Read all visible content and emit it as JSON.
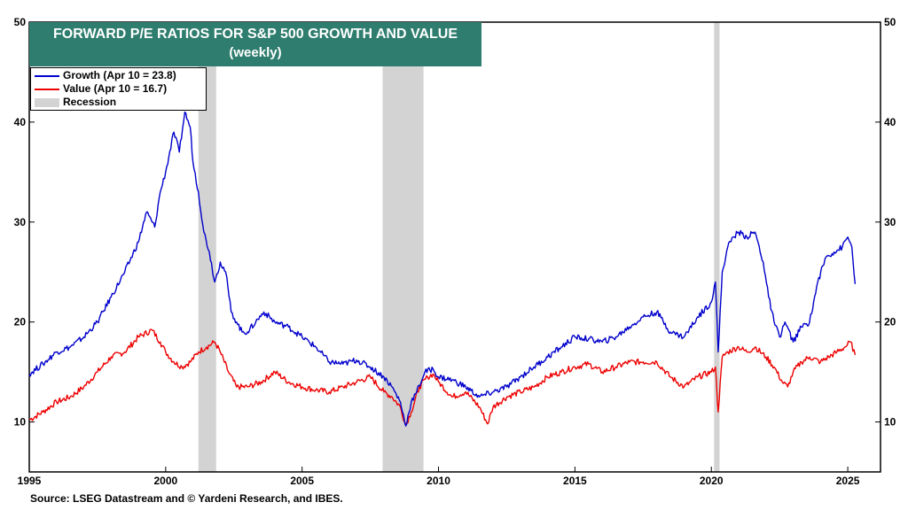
{
  "chart_data": {
    "type": "line",
    "title": "FORWARD P/E RATIOS FOR S&P 500 GROWTH AND VALUE",
    "subtitle": "(weekly)",
    "xlim": [
      1995,
      2026.2
    ],
    "ylim": [
      5,
      50
    ],
    "x_ticks": [
      "1995",
      "2000",
      "2005",
      "2010",
      "2015",
      "2020",
      "2025"
    ],
    "y_ticks": [
      "10",
      "20",
      "30",
      "40",
      "50"
    ],
    "legend_position": "top-left",
    "series": [
      {
        "name": "Growth (Apr 10 = 23.8)",
        "color": "#0000cc",
        "x": [
          1995.0,
          1995.5,
          1996.0,
          1996.5,
          1997.0,
          1997.5,
          1998.0,
          1998.5,
          1999.0,
          1999.3,
          1999.6,
          1999.8,
          2000.0,
          2000.3,
          2000.5,
          2000.7,
          2000.9,
          2001.0,
          2001.2,
          2001.4,
          2001.6,
          2001.8,
          2002.0,
          2002.2,
          2002.4,
          2002.6,
          2002.8,
          2003.0,
          2003.3,
          2003.6,
          2004.0,
          2004.5,
          2005.0,
          2005.5,
          2006.0,
          2006.5,
          2007.0,
          2007.5,
          2008.0,
          2008.3,
          2008.6,
          2008.8,
          2009.0,
          2009.2,
          2009.5,
          2009.8,
          2010.0,
          2010.5,
          2011.0,
          2011.5,
          2012.0,
          2012.5,
          2013.0,
          2013.5,
          2014.0,
          2014.5,
          2015.0,
          2015.5,
          2016.0,
          2016.5,
          2017.0,
          2017.5,
          2018.0,
          2018.5,
          2019.0,
          2019.5,
          2020.0,
          2020.15,
          2020.25,
          2020.4,
          2020.6,
          2020.8,
          2021.0,
          2021.3,
          2021.6,
          2021.9,
          2022.1,
          2022.3,
          2022.5,
          2022.7,
          2023.0,
          2023.3,
          2023.6,
          2023.9,
          2024.2,
          2024.5,
          2024.8,
          2025.0,
          2025.15,
          2025.27
        ],
        "values": [
          14.8,
          15.8,
          17.0,
          17.5,
          18.5,
          20.0,
          22.5,
          25.0,
          28.0,
          31.0,
          29.5,
          33.0,
          35.0,
          39.0,
          37.0,
          41.0,
          39.5,
          36.0,
          33.0,
          29.0,
          27.0,
          24.0,
          26.0,
          25.0,
          21.0,
          20.0,
          19.0,
          19.0,
          20.0,
          21.0,
          20.0,
          19.5,
          18.5,
          17.5,
          16.0,
          15.8,
          16.2,
          15.5,
          14.5,
          13.5,
          12.0,
          9.6,
          12.0,
          13.0,
          15.0,
          15.3,
          14.5,
          14.2,
          13.5,
          12.5,
          13.0,
          13.5,
          14.5,
          15.5,
          16.5,
          17.5,
          18.5,
          18.3,
          18.0,
          18.5,
          19.5,
          20.5,
          21.0,
          19.0,
          18.5,
          20.5,
          22.0,
          24.0,
          17.0,
          25.0,
          27.5,
          28.5,
          29.0,
          28.5,
          29.0,
          26.0,
          22.5,
          20.0,
          18.5,
          20.0,
          18.0,
          19.5,
          20.0,
          24.0,
          26.5,
          27.0,
          27.5,
          28.5,
          27.5,
          23.8
        ]
      },
      {
        "name": "Value (Apr 10 = 16.7)",
        "color": "#ee0000",
        "x": [
          1995.0,
          1995.5,
          1996.0,
          1996.5,
          1997.0,
          1997.5,
          1998.0,
          1998.5,
          1999.0,
          1999.5,
          1999.8,
          2000.0,
          2000.3,
          2000.6,
          2000.9,
          2001.2,
          2001.5,
          2001.8,
          2002.0,
          2002.3,
          2002.6,
          2003.0,
          2003.5,
          2004.0,
          2004.5,
          2005.0,
          2005.5,
          2006.0,
          2006.5,
          2007.0,
          2007.5,
          2008.0,
          2008.3,
          2008.6,
          2008.8,
          2009.0,
          2009.3,
          2009.6,
          2009.8,
          2010.0,
          2010.5,
          2011.0,
          2011.5,
          2011.8,
          2012.0,
          2012.5,
          2013.0,
          2013.5,
          2014.0,
          2014.5,
          2015.0,
          2015.5,
          2016.0,
          2016.5,
          2017.0,
          2017.5,
          2018.0,
          2018.5,
          2019.0,
          2019.5,
          2020.0,
          2020.15,
          2020.25,
          2020.4,
          2020.6,
          2021.0,
          2021.3,
          2021.6,
          2022.0,
          2022.3,
          2022.6,
          2022.8,
          2023.0,
          2023.3,
          2023.6,
          2024.0,
          2024.3,
          2024.6,
          2024.9,
          2025.1,
          2025.27
        ],
        "values": [
          10.2,
          11.0,
          12.0,
          12.5,
          13.5,
          15.0,
          16.5,
          17.0,
          18.5,
          19.2,
          18.0,
          17.0,
          16.0,
          15.5,
          16.0,
          17.0,
          17.5,
          18.0,
          17.0,
          15.0,
          13.5,
          13.5,
          14.0,
          15.0,
          14.0,
          13.5,
          13.2,
          13.0,
          13.5,
          14.0,
          14.5,
          13.0,
          12.5,
          11.5,
          9.7,
          11.0,
          13.5,
          14.5,
          14.8,
          14.0,
          12.5,
          13.0,
          11.5,
          9.8,
          11.5,
          12.5,
          13.0,
          13.5,
          14.5,
          15.0,
          15.5,
          15.8,
          15.0,
          15.5,
          16.0,
          16.0,
          16.0,
          14.5,
          13.5,
          14.5,
          15.0,
          15.5,
          11.0,
          16.5,
          17.0,
          17.5,
          17.0,
          17.5,
          16.5,
          15.5,
          14.0,
          13.5,
          15.0,
          16.0,
          16.5,
          16.0,
          16.5,
          17.0,
          17.5,
          18.0,
          16.7
        ]
      },
      {
        "name": "Recession",
        "color": "#d3d3d3",
        "periods": [
          [
            2001.2,
            2001.85
          ],
          [
            2007.95,
            2009.45
          ],
          [
            2020.1,
            2020.3
          ]
        ]
      }
    ]
  },
  "source": "Source: LSEG Datastream and © Yardeni Research, and IBES."
}
